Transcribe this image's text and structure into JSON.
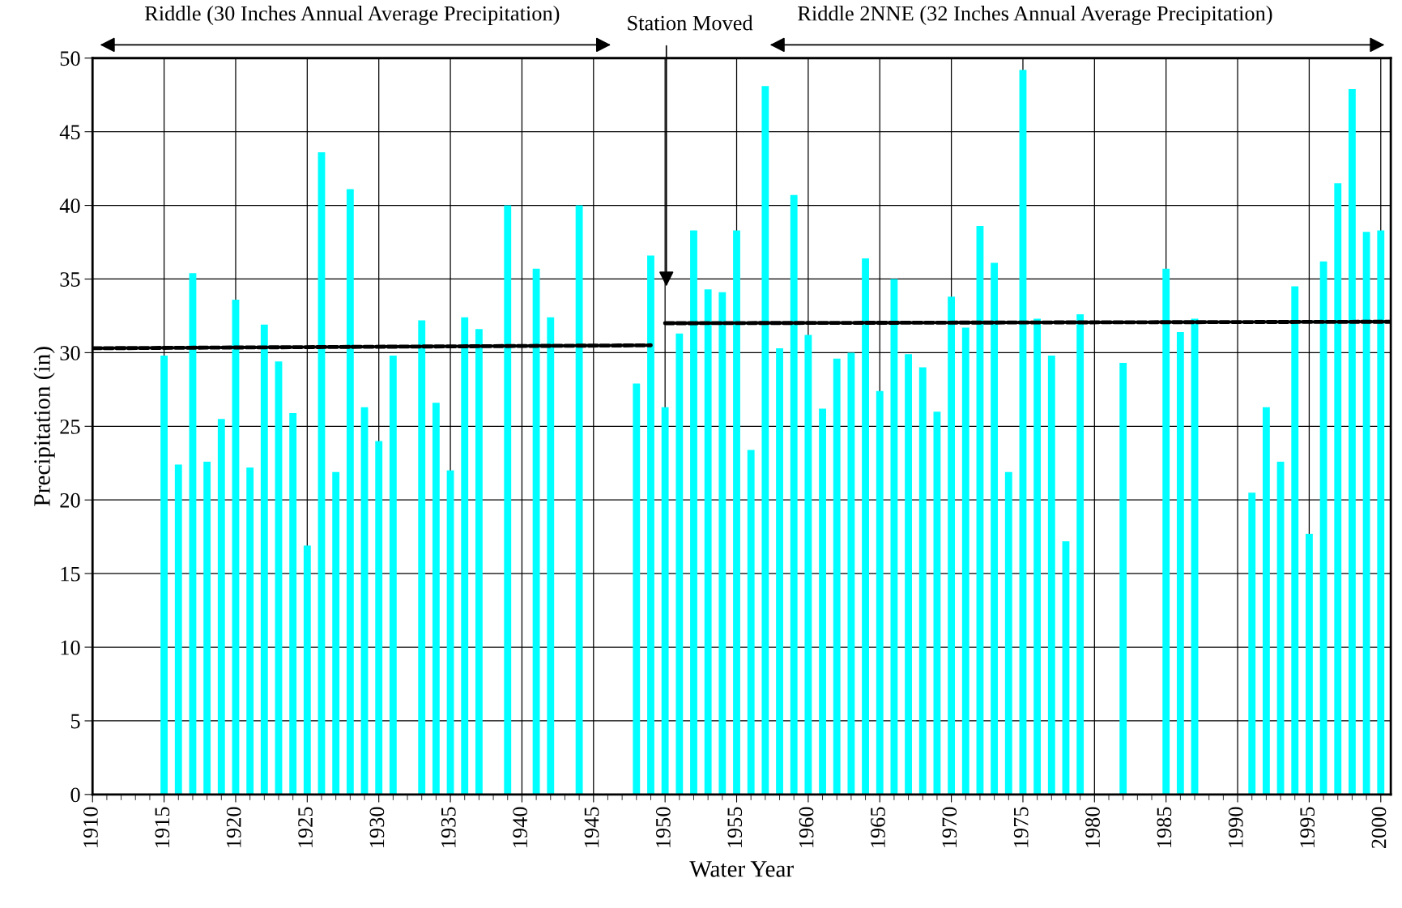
{
  "chart_data": {
    "type": "bar",
    "xlabel": "Water Year",
    "ylabel": "Precipitation (in)",
    "x": [
      1915,
      1916,
      1917,
      1918,
      1919,
      1920,
      1921,
      1922,
      1923,
      1924,
      1925,
      1926,
      1927,
      1928,
      1929,
      1930,
      1931,
      1933,
      1934,
      1935,
      1936,
      1937,
      1939,
      1941,
      1942,
      1944,
      1948,
      1949,
      1950,
      1951,
      1952,
      1953,
      1954,
      1955,
      1956,
      1957,
      1958,
      1959,
      1960,
      1961,
      1962,
      1963,
      1964,
      1965,
      1966,
      1967,
      1968,
      1969,
      1970,
      1971,
      1972,
      1973,
      1974,
      1975,
      1976,
      1977,
      1978,
      1979,
      1982,
      1985,
      1986,
      1987,
      1991,
      1992,
      1993,
      1994,
      1995,
      1996,
      1997,
      1998,
      1999,
      2000
    ],
    "series": [
      {
        "color": "#00ffff",
        "values": [
          29.8,
          22.4,
          35.4,
          22.6,
          25.5,
          33.6,
          22.2,
          31.9,
          29.4,
          25.9,
          16.9,
          43.6,
          21.9,
          41.1,
          26.3,
          24.0,
          29.8,
          32.2,
          26.6,
          22.0,
          32.4,
          31.6,
          40.0,
          35.7,
          32.4,
          40.0,
          27.9,
          36.6,
          26.3,
          31.3,
          38.3,
          34.3,
          34.1,
          38.3,
          23.4,
          48.1,
          30.3,
          40.7,
          31.2,
          26.2,
          29.6,
          30.0,
          36.4,
          27.4,
          35.0,
          29.9,
          29.0,
          26.0,
          33.8,
          31.7,
          38.6,
          36.1,
          21.9,
          49.2,
          32.3,
          29.8,
          17.2,
          32.6,
          29.3,
          35.7,
          31.4,
          32.3,
          20.5,
          26.3,
          22.6,
          34.5,
          17.7,
          36.2,
          41.5,
          47.9,
          38.2,
          38.3
        ]
      },
      {
        "type": "line",
        "color": "#000000",
        "line_style": "dashed",
        "x": [
          1910,
          1949
        ],
        "values": [
          30.3,
          30.5
        ]
      },
      {
        "type": "line",
        "color": "#000000",
        "line_style": "dashed",
        "x": [
          1950,
          2000.7
        ],
        "values": [
          32.0,
          32.1
        ]
      }
    ],
    "annotations": [
      "Riddle (30 Inches Annual Average Precipitation)",
      "Station Moved",
      "Riddle 2NNE (32 Inches Annual Average Precipitation)"
    ],
    "xlim": [
      1910,
      2000.7
    ],
    "xticks": [
      1910,
      1915,
      1920,
      1925,
      1930,
      1935,
      1940,
      1945,
      1950,
      1955,
      1960,
      1965,
      1970,
      1975,
      1980,
      1985,
      1990,
      1995,
      2000
    ],
    "ylim": [
      0,
      50
    ],
    "yticks": [
      0,
      5,
      10,
      15,
      20,
      25,
      30,
      35,
      40,
      45,
      50
    ],
    "grid": true
  }
}
